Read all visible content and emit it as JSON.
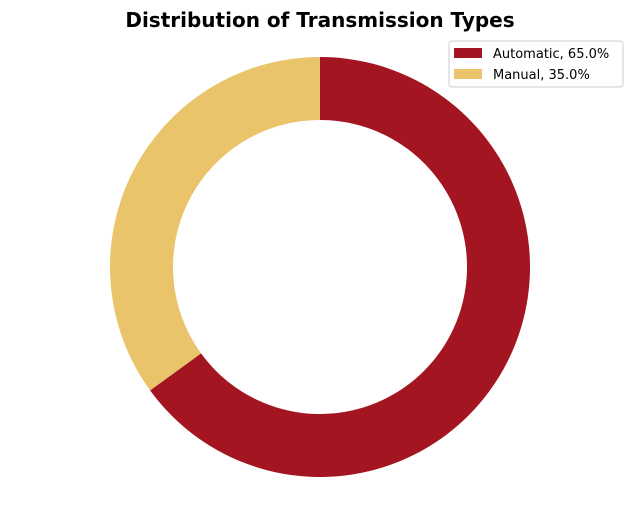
{
  "chart_data": {
    "type": "pie",
    "variant": "donut",
    "title": "Distribution of Transmission Types",
    "categories": [
      "Automatic",
      "Manual"
    ],
    "values": [
      65.0,
      35.0
    ],
    "labels": [
      "Automatic, 65.0%",
      "Manual, 35.0%"
    ],
    "colors": [
      "#a31621",
      "#e9c46a"
    ],
    "legend_position": "top-right",
    "start_angle": "top",
    "direction": "clockwise",
    "grid": false
  }
}
